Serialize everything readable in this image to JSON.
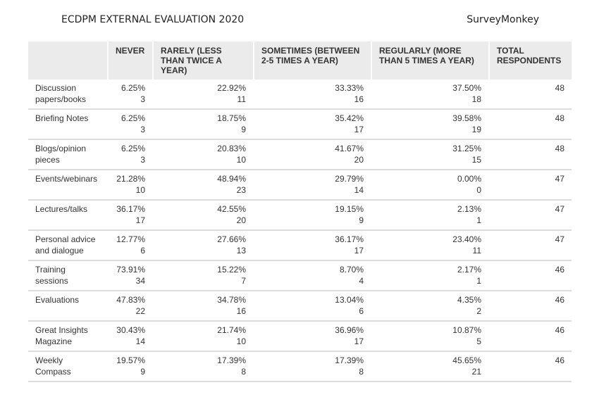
{
  "header": {
    "title": "ECDPM EXTERNAL EVALUATION 2020",
    "brand": "SurveyMonkey"
  },
  "table": {
    "columns": [
      "",
      "NEVER",
      "RARELY (LESS THAN TWICE A YEAR)",
      "SOMETIMES (BETWEEN 2-5 TIMES A YEAR)",
      "REGULARLY (MORE THAN 5 TIMES A YEAR)",
      "TOTAL RESPONDENTS"
    ],
    "rows": [
      {
        "label": "Discussion papers/books",
        "cells": [
          {
            "pct": "6.25%",
            "count": "3"
          },
          {
            "pct": "22.92%",
            "count": "11"
          },
          {
            "pct": "33.33%",
            "count": "16"
          },
          {
            "pct": "37.50%",
            "count": "18"
          }
        ],
        "total": "48"
      },
      {
        "label": "Briefing Notes",
        "cells": [
          {
            "pct": "6.25%",
            "count": "3"
          },
          {
            "pct": "18.75%",
            "count": "9"
          },
          {
            "pct": "35.42%",
            "count": "17"
          },
          {
            "pct": "39.58%",
            "count": "19"
          }
        ],
        "total": "48"
      },
      {
        "label": "Blogs/opinion pieces",
        "cells": [
          {
            "pct": "6.25%",
            "count": "3"
          },
          {
            "pct": "20.83%",
            "count": "10"
          },
          {
            "pct": "41.67%",
            "count": "20"
          },
          {
            "pct": "31.25%",
            "count": "15"
          }
        ],
        "total": "48"
      },
      {
        "label": "Events/webinars",
        "cells": [
          {
            "pct": "21.28%",
            "count": "10"
          },
          {
            "pct": "48.94%",
            "count": "23"
          },
          {
            "pct": "29.79%",
            "count": "14"
          },
          {
            "pct": "0.00%",
            "count": "0"
          }
        ],
        "total": "47"
      },
      {
        "label": "Lectures/talks",
        "cells": [
          {
            "pct": "36.17%",
            "count": "17"
          },
          {
            "pct": "42.55%",
            "count": "20"
          },
          {
            "pct": "19.15%",
            "count": "9"
          },
          {
            "pct": "2.13%",
            "count": "1"
          }
        ],
        "total": "47"
      },
      {
        "label": "Personal advice and dialogue",
        "cells": [
          {
            "pct": "12.77%",
            "count": "6"
          },
          {
            "pct": "27.66%",
            "count": "13"
          },
          {
            "pct": "36.17%",
            "count": "17"
          },
          {
            "pct": "23.40%",
            "count": "11"
          }
        ],
        "total": "47"
      },
      {
        "label": "Training sessions",
        "cells": [
          {
            "pct": "73.91%",
            "count": "34"
          },
          {
            "pct": "15.22%",
            "count": "7"
          },
          {
            "pct": "8.70%",
            "count": "4"
          },
          {
            "pct": "2.17%",
            "count": "1"
          }
        ],
        "total": "46"
      },
      {
        "label": "Evaluations",
        "cells": [
          {
            "pct": "47.83%",
            "count": "22"
          },
          {
            "pct": "34.78%",
            "count": "16"
          },
          {
            "pct": "13.04%",
            "count": "6"
          },
          {
            "pct": "4.35%",
            "count": "2"
          }
        ],
        "total": "46"
      },
      {
        "label": "Great Insights Magazine",
        "cells": [
          {
            "pct": "30.43%",
            "count": "14"
          },
          {
            "pct": "21.74%",
            "count": "10"
          },
          {
            "pct": "36.96%",
            "count": "17"
          },
          {
            "pct": "10.87%",
            "count": "5"
          }
        ],
        "total": "46"
      },
      {
        "label": "Weekly Compass",
        "cells": [
          {
            "pct": "19.57%",
            "count": "9"
          },
          {
            "pct": "17.39%",
            "count": "8"
          },
          {
            "pct": "17.39%",
            "count": "8"
          },
          {
            "pct": "45.65%",
            "count": "21"
          }
        ],
        "total": "46"
      }
    ]
  }
}
